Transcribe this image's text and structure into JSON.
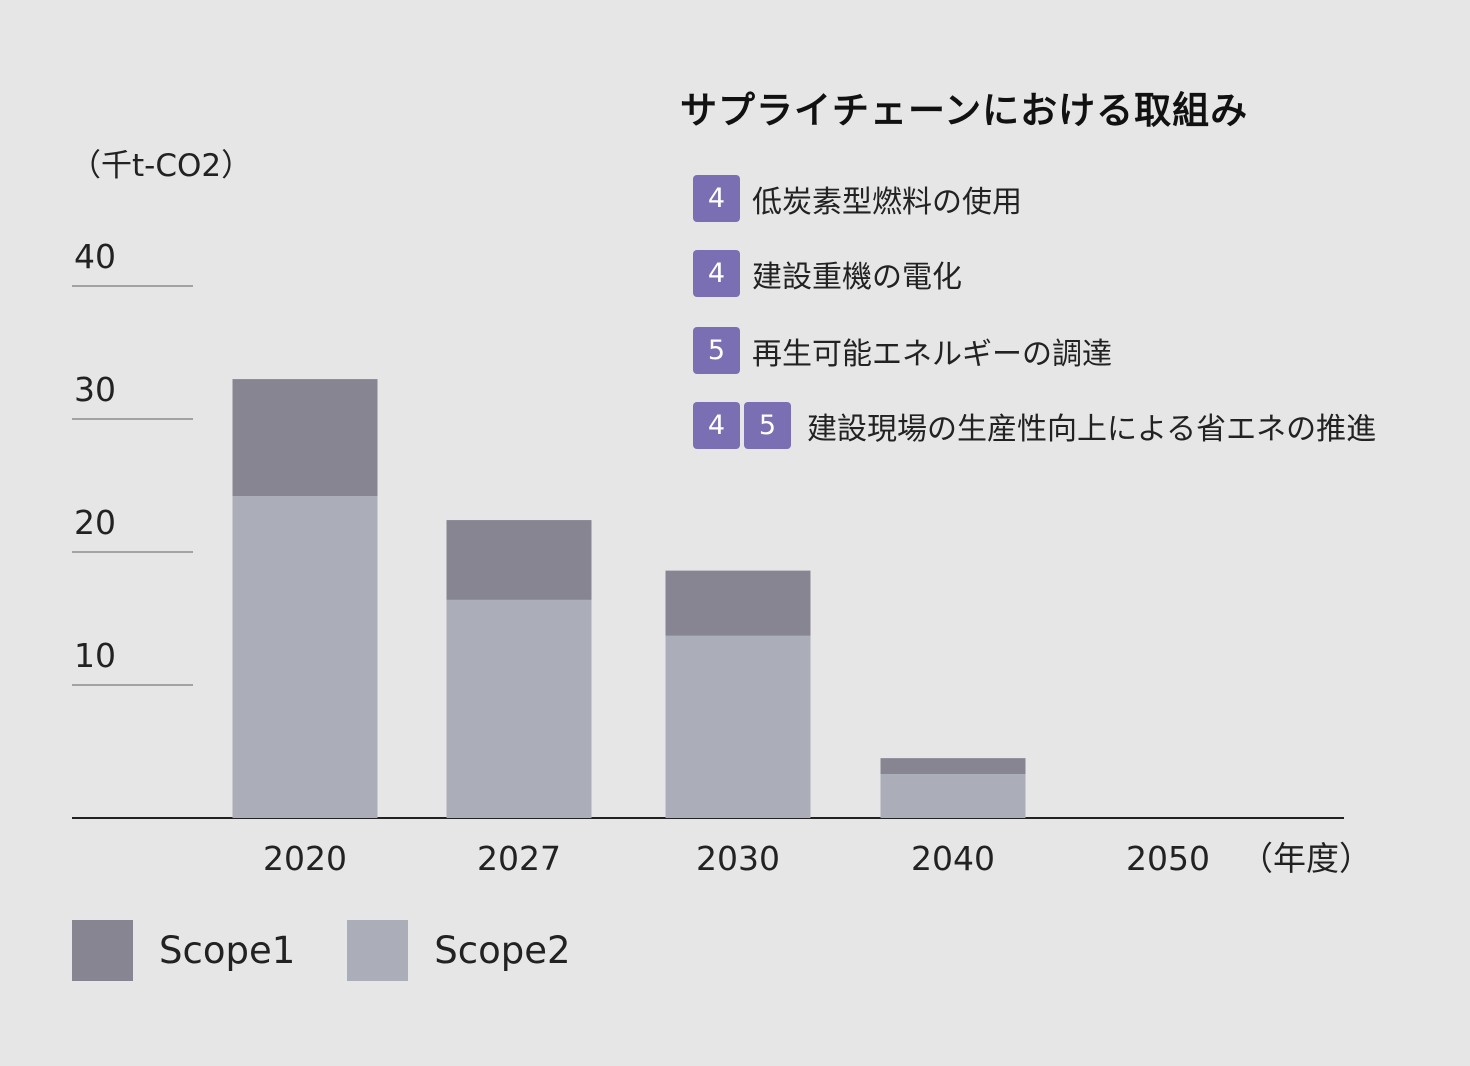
{
  "chart_data": {
    "type": "bar",
    "stacked": true,
    "unit_label": "（千t-CO2）",
    "x_unit_label": "（年度）",
    "categories": [
      "2020",
      "2027",
      "2030",
      "2040",
      "2050"
    ],
    "series": [
      {
        "name": "Scope1",
        "color": "#878592",
        "values": [
          8.8,
          6.0,
          4.9,
          1.2,
          0
        ]
      },
      {
        "name": "Scope2",
        "color": "#abaeb8",
        "values": [
          24.2,
          16.4,
          13.7,
          3.3,
          0
        ]
      }
    ],
    "yticks": [
      10,
      20,
      30,
      40
    ],
    "ylim": [
      0,
      40
    ],
    "grid": false,
    "legend_position": "bottom-left"
  },
  "panel": {
    "title": "サプライチェーンにおける取組み",
    "badge_color": "#7b6fb3",
    "items": [
      {
        "badges": [
          "4"
        ],
        "text": "低炭素型燃料の使用"
      },
      {
        "badges": [
          "4"
        ],
        "text": "建設重機の電化"
      },
      {
        "badges": [
          "5"
        ],
        "text": "再生可能エネルギーの調達"
      },
      {
        "badges": [
          "4",
          "5"
        ],
        "text": "建設現場の生産性向上による省エネの推進"
      }
    ]
  }
}
